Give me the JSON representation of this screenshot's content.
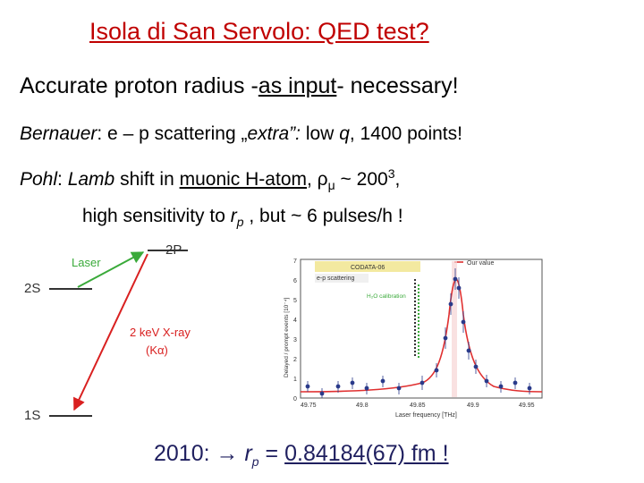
{
  "title": "Isola di San Servolo:  QED test?",
  "line1": {
    "pre": "Accurate proton radius -",
    "underlined": "as input",
    "post": "- necessary!"
  },
  "line2": {
    "name": "Bernauer",
    "text1": ":  e – p scattering  „",
    "extra": "extra”:",
    "text2": " low ",
    "q": "q",
    "text3": ", 1400 points!"
  },
  "line3": {
    "name": "Pohl",
    "colon": ":  ",
    "lamb": "Lamb",
    "text1": " shift in ",
    "underlined": "muonic H-atom",
    "text2": ",   ρ",
    "mu": "μ",
    "text3": " ~ 200",
    "sup": "3",
    "text4": ","
  },
  "line4": {
    "text1": "high sensitivity to ",
    "r": "r",
    "p": "p",
    "text2": " ,   but  ~ 6 pulses/h !"
  },
  "levels": {
    "top": "2P",
    "middle": "2S",
    "bottom": "1S",
    "laser": "Laser",
    "xray_line1": "2 keV X-ray",
    "xray_line2": "(Kα)"
  },
  "plot_labels": {
    "codata": "CODATA-06",
    "our_value": "Our value",
    "ep": "e-p scattering",
    "h2o": "H₂O calibration",
    "ylabel": "Delayed / prompt events [10⁻⁴]",
    "xlabel": "Laser frequency [THz]",
    "yticks": [
      "0",
      "1",
      "2",
      "3",
      "4",
      "5",
      "6",
      "7"
    ],
    "xticks": [
      "49.75",
      "49.8",
      "49.85",
      "49.9",
      "49.95"
    ]
  },
  "result": {
    "pre": "2010: ",
    "arrow": "→",
    "r": "r",
    "p": "p",
    "eq": " = ",
    "value": "0.84184(67) fm",
    "post": " !"
  },
  "colors": {
    "title": "#c00000",
    "green": "#3aaa3a",
    "red": "#d92020",
    "fit_red": "#e03030",
    "point_blue": "#2a3a8a",
    "result": "#1f1f5f"
  }
}
